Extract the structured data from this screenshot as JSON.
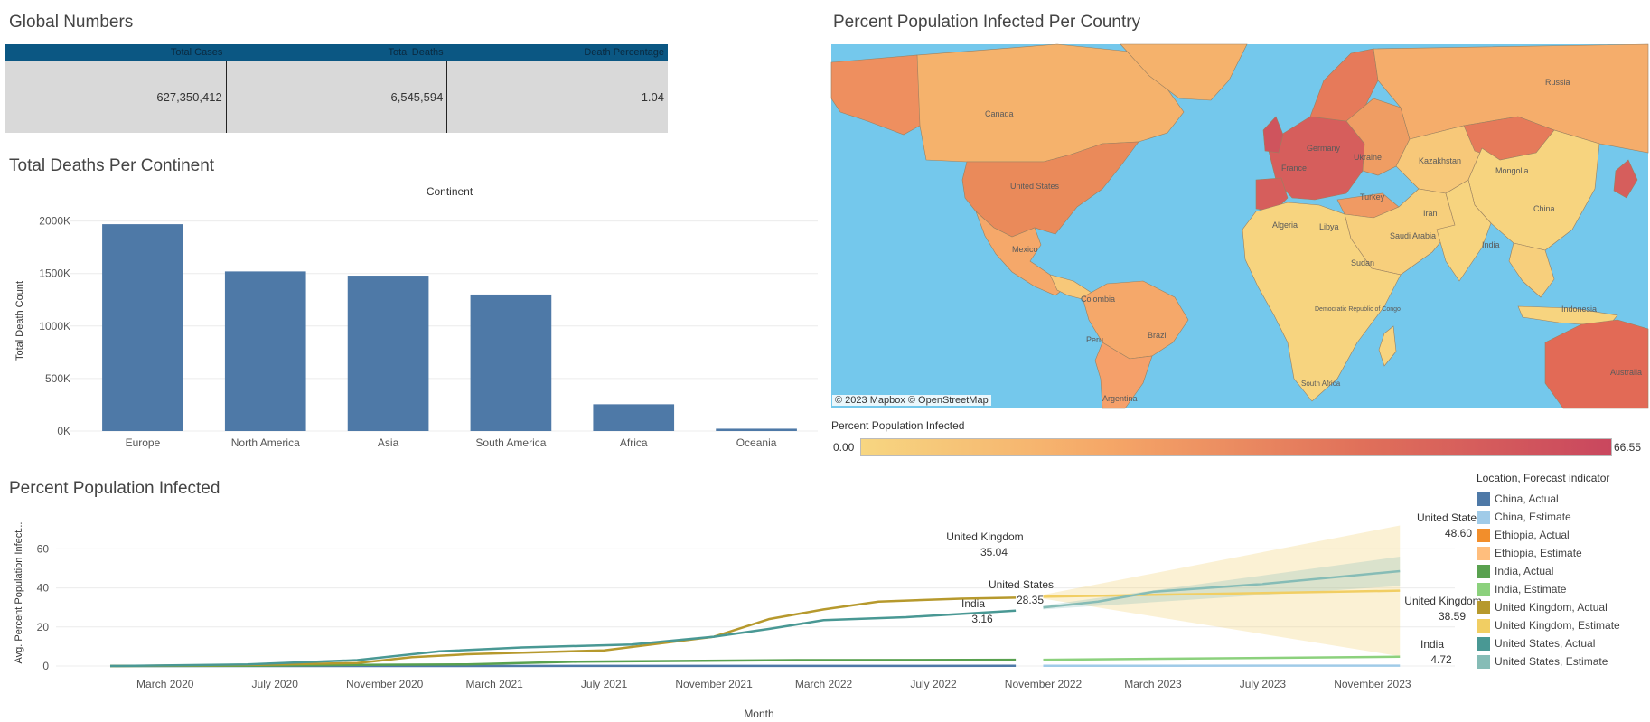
{
  "global_numbers": {
    "title": "Global Numbers",
    "headers": [
      "Total Cases",
      "Total Deaths",
      "Death Percentage"
    ],
    "values": [
      "627,350,412",
      "6,545,594",
      "1.04"
    ]
  },
  "map_section": {
    "title": "Percent Population Infected Per Country",
    "attribution": "© 2023 Mapbox  © OpenStreetMap",
    "legend_title": "Percent Population Infected",
    "legend_min": "0.00",
    "legend_max": "66.55",
    "labels": [
      "Canada",
      "United States",
      "Mexico",
      "Colombia",
      "Peru",
      "Brazil",
      "Argentina",
      "Algeria",
      "Libya",
      "Sudan",
      "Saudi Arabia",
      "Iran",
      "Kazakhstan",
      "Mongolia",
      "China",
      "India",
      "Russia",
      "Turkey",
      "France",
      "Germany",
      "Ukraine",
      "Democratic Republic of Congo",
      "South Africa",
      "Indonesia",
      "Australia"
    ],
    "colors": {
      "ocean": "#74c8ec",
      "low": "#f7d681",
      "mid": "#f5a667",
      "high": "#e0705a",
      "top": "#c9475e"
    }
  },
  "chart_data": [
    {
      "type": "bar",
      "title": "Total Deaths Per Continent",
      "xlabel": "Continent",
      "ylabel": "Total Death Count",
      "categories": [
        "Europe",
        "North America",
        "Asia",
        "South America",
        "Africa",
        "Oceania"
      ],
      "values": [
        1970000,
        1520000,
        1480000,
        1300000,
        255000,
        22000
      ],
      "ylim": [
        0,
        2100000
      ],
      "yticks": [
        0,
        500000,
        1000000,
        1500000,
        2000000
      ],
      "ytick_labels": [
        "0K",
        "500K",
        "1000K",
        "1500K",
        "2000K"
      ],
      "color": "#4e79a7",
      "grid": true
    },
    {
      "type": "line",
      "title": "Percent Population Infected",
      "xlabel": "Month",
      "ylabel": "Avg. Percent Population Infect...",
      "x_range": [
        "2020-01",
        "2024-02"
      ],
      "x_ticks": [
        "2020-03",
        "2020-07",
        "2020-11",
        "2021-03",
        "2021-07",
        "2021-11",
        "2022-03",
        "2022-07",
        "2022-11",
        "2023-03",
        "2023-07",
        "2023-11"
      ],
      "x_tick_labels": [
        "March 2020",
        "July 2020",
        "November 2020",
        "March 2021",
        "July 2021",
        "November 2021",
        "March 2022",
        "July 2022",
        "November 2022",
        "March 2023",
        "July 2023",
        "November 2023"
      ],
      "ylim": [
        0,
        75
      ],
      "yticks": [
        0,
        20,
        40,
        60
      ],
      "legend_title": "Location, Forecast indicator",
      "legend": [
        {
          "label": "China, Actual",
          "color": "#4e79a7"
        },
        {
          "label": "China, Estimate",
          "color": "#a0cbe8"
        },
        {
          "label": "Ethiopia, Actual",
          "color": "#f28e2b"
        },
        {
          "label": "Ethiopia, Estimate",
          "color": "#ffbe7d"
        },
        {
          "label": "India, Actual",
          "color": "#59a14f"
        },
        {
          "label": "India, Estimate",
          "color": "#8cd17d"
        },
        {
          "label": "United Kingdom, Actual",
          "color": "#b6992d"
        },
        {
          "label": "United Kingdom, Estimate",
          "color": "#f1ce63"
        },
        {
          "label": "United States, Actual",
          "color": "#499894"
        },
        {
          "label": "United States, Estimate",
          "color": "#86bcb6"
        }
      ],
      "series": [
        {
          "location": "China",
          "kind": "Actual",
          "color": "#4e79a7",
          "x": [
            "2020-01",
            "2021-01",
            "2022-01",
            "2022-10"
          ],
          "y": [
            0.0,
            0.02,
            0.05,
            0.1
          ]
        },
        {
          "location": "China",
          "kind": "Estimate",
          "color": "#a0cbe8",
          "x": [
            "2022-11",
            "2023-12"
          ],
          "y": [
            0.1,
            0.2
          ]
        },
        {
          "location": "India",
          "kind": "Actual",
          "color": "#59a14f",
          "x": [
            "2020-01",
            "2020-06",
            "2020-10",
            "2021-02",
            "2021-06",
            "2022-02",
            "2022-10"
          ],
          "y": [
            0,
            0.1,
            0.6,
            0.8,
            2.2,
            3.0,
            3.16
          ]
        },
        {
          "location": "India",
          "kind": "Estimate",
          "color": "#8cd17d",
          "x": [
            "2022-11",
            "2023-12"
          ],
          "y": [
            3.2,
            4.72
          ]
        },
        {
          "location": "United Kingdom",
          "kind": "Actual",
          "color": "#b6992d",
          "x": [
            "2020-01",
            "2020-06",
            "2020-10",
            "2020-12",
            "2021-02",
            "2021-07",
            "2021-11",
            "2022-01",
            "2022-03",
            "2022-05",
            "2022-08",
            "2022-10"
          ],
          "y": [
            0,
            0.5,
            1.5,
            4.5,
            6,
            8,
            15,
            24,
            29,
            33,
            34.5,
            35.04
          ]
        },
        {
          "location": "United Kingdom",
          "kind": "Estimate",
          "color": "#f1ce63",
          "x": [
            "2022-11",
            "2023-12"
          ],
          "y": [
            35.5,
            38.59
          ],
          "band_x": [
            "2022-11",
            "2023-12"
          ],
          "band_upper": [
            36.5,
            72
          ],
          "band_lower": [
            34.5,
            5
          ]
        },
        {
          "location": "United States",
          "kind": "Actual",
          "color": "#499894",
          "x": [
            "2020-01",
            "2020-06",
            "2020-10",
            "2021-01",
            "2021-04",
            "2021-08",
            "2021-11",
            "2022-01",
            "2022-03",
            "2022-06",
            "2022-10"
          ],
          "y": [
            0,
            0.8,
            3,
            7.5,
            9.5,
            11,
            15,
            19,
            23.5,
            25,
            28.35
          ]
        },
        {
          "location": "United States",
          "kind": "Estimate",
          "color": "#86bcb6",
          "x": [
            "2022-11",
            "2023-01",
            "2023-03",
            "2023-07",
            "2023-12"
          ],
          "y": [
            30,
            33,
            38,
            42,
            48.6
          ],
          "band_x": [
            "2022-11",
            "2023-12"
          ],
          "band_upper": [
            31,
            56
          ],
          "band_lower": [
            29,
            41
          ]
        }
      ],
      "annotations": [
        {
          "text": "United Kingdom",
          "value": "35.04"
        },
        {
          "text": "United States",
          "value": "28.35"
        },
        {
          "text": "India",
          "value": "3.16"
        },
        {
          "text": "United States",
          "value": "48.60"
        },
        {
          "text": "United Kingdom",
          "value": "38.59"
        },
        {
          "text": "India",
          "value": "4.72"
        }
      ]
    }
  ]
}
